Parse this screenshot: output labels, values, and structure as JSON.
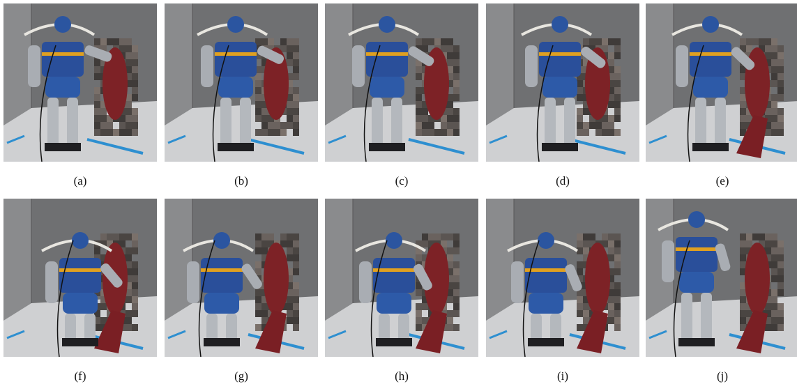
{
  "panels": [
    {
      "label": "(a)"
    },
    {
      "label": "(b)"
    },
    {
      "label": "(c)"
    },
    {
      "label": "(d)"
    },
    {
      "label": "(e)"
    },
    {
      "label": "(f)"
    },
    {
      "label": "(g)"
    },
    {
      "label": "(h)"
    },
    {
      "label": "(i)"
    },
    {
      "label": "(j)"
    }
  ]
}
